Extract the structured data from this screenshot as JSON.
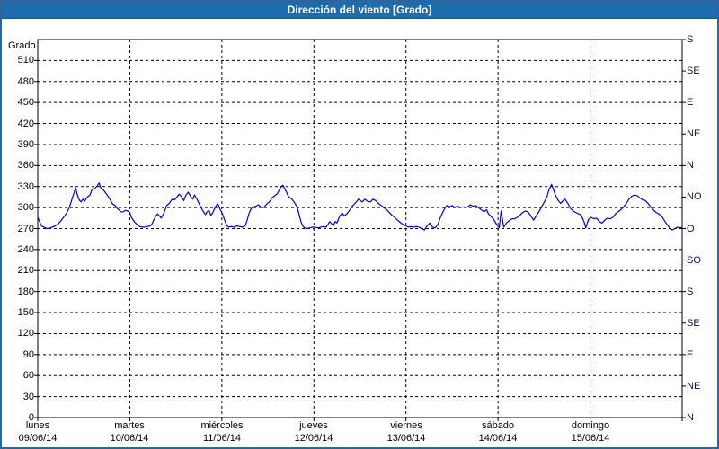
{
  "window": {
    "title": "Dirección del viento [Grado]"
  },
  "colors": {
    "titlebar_bg": "#1e6cab",
    "titlebar_border": "#15568e",
    "frame_border": "#30649c",
    "title_text": "#ffffff",
    "plot_bg": "#ffffff",
    "grid": "#000000",
    "axis": "#000000",
    "line": "#0000cc",
    "text": "#000000"
  },
  "chart_data": {
    "type": "line",
    "title": "Dirección del viento [Grado]",
    "y_axis_label": "Grado",
    "ylim": [
      0,
      540
    ],
    "ylabel_unit": "Grado",
    "grid": "dashed",
    "legend_position": "none",
    "y_ticks_left": [
      0,
      30,
      60,
      90,
      120,
      150,
      180,
      210,
      240,
      270,
      300,
      330,
      360,
      390,
      420,
      450,
      480,
      510
    ],
    "y_ticks_right": [
      {
        "value": 0,
        "label": "N"
      },
      {
        "value": 45,
        "label": "NE"
      },
      {
        "value": 90,
        "label": "E"
      },
      {
        "value": 135,
        "label": "SE"
      },
      {
        "value": 180,
        "label": "S"
      },
      {
        "value": 225,
        "label": "SO"
      },
      {
        "value": 270,
        "label": "O"
      },
      {
        "value": 315,
        "label": "NO"
      },
      {
        "value": 360,
        "label": "N"
      },
      {
        "value": 405,
        "label": "NE"
      },
      {
        "value": 450,
        "label": "E"
      },
      {
        "value": 495,
        "label": "SE"
      },
      {
        "value": 540,
        "label": "S"
      }
    ],
    "xlim_days": [
      0,
      7
    ],
    "x_days": [
      {
        "name": "lunes",
        "date": "09/06/14"
      },
      {
        "name": "martes",
        "date": "10/06/14"
      },
      {
        "name": "miércoles",
        "date": "11/06/14"
      },
      {
        "name": "jueves",
        "date": "12/06/14"
      },
      {
        "name": "viernes",
        "date": "13/06/14"
      },
      {
        "name": "sábado",
        "date": "14/06/14"
      },
      {
        "name": "domingo",
        "date": "15/06/14"
      }
    ],
    "series": [
      {
        "name": "Dirección del viento",
        "color": "#0000cc",
        "points": [
          [
            0.0,
            286
          ],
          [
            0.02,
            280
          ],
          [
            0.039,
            274
          ],
          [
            0.069,
            272
          ],
          [
            0.098,
            270
          ],
          [
            0.137,
            271
          ],
          [
            0.176,
            273
          ],
          [
            0.215,
            276
          ],
          [
            0.245,
            280
          ],
          [
            0.274,
            285
          ],
          [
            0.313,
            292
          ],
          [
            0.343,
            300
          ],
          [
            0.362,
            308
          ],
          [
            0.382,
            316
          ],
          [
            0.401,
            324
          ],
          [
            0.411,
            328
          ],
          [
            0.431,
            318
          ],
          [
            0.45,
            311
          ],
          [
            0.47,
            308
          ],
          [
            0.49,
            312
          ],
          [
            0.509,
            309
          ],
          [
            0.538,
            315
          ],
          [
            0.568,
            318
          ],
          [
            0.587,
            325
          ],
          [
            0.617,
            327
          ],
          [
            0.646,
            331
          ],
          [
            0.666,
            335
          ],
          [
            0.685,
            328
          ],
          [
            0.715,
            325
          ],
          [
            0.754,
            318
          ],
          [
            0.783,
            312
          ],
          [
            0.813,
            305
          ],
          [
            0.842,
            303
          ],
          [
            0.862,
            299
          ],
          [
            0.881,
            297
          ],
          [
            0.901,
            294
          ],
          [
            0.93,
            294
          ],
          [
            0.95,
            296
          ],
          [
            0.979,
            295
          ],
          [
            0.999,
            293
          ],
          [
            1.018,
            286
          ],
          [
            1.048,
            280
          ],
          [
            1.077,
            276
          ],
          [
            1.106,
            273
          ],
          [
            1.136,
            272
          ],
          [
            1.165,
            272
          ],
          [
            1.194,
            273
          ],
          [
            1.224,
            274
          ],
          [
            1.243,
            277
          ],
          [
            1.263,
            283
          ],
          [
            1.283,
            288
          ],
          [
            1.302,
            291
          ],
          [
            1.322,
            288
          ],
          [
            1.341,
            285
          ],
          [
            1.371,
            292
          ],
          [
            1.4,
            303
          ],
          [
            1.429,
            306
          ],
          [
            1.459,
            312
          ],
          [
            1.488,
            311
          ],
          [
            1.517,
            316
          ],
          [
            1.537,
            319
          ],
          [
            1.566,
            315
          ],
          [
            1.586,
            310
          ],
          [
            1.606,
            317
          ],
          [
            1.635,
            322
          ],
          [
            1.664,
            315
          ],
          [
            1.684,
            312
          ],
          [
            1.703,
            318
          ],
          [
            1.733,
            311
          ],
          [
            1.762,
            303
          ],
          [
            1.791,
            296
          ],
          [
            1.821,
            290
          ],
          [
            1.84,
            294
          ],
          [
            1.86,
            296
          ],
          [
            1.88,
            289
          ],
          [
            1.899,
            292
          ],
          [
            1.919,
            298
          ],
          [
            1.938,
            303
          ],
          [
            1.958,
            305
          ],
          [
            1.978,
            298
          ],
          [
            1.997,
            294
          ],
          [
            2.017,
            287
          ],
          [
            2.036,
            280
          ],
          [
            2.056,
            274
          ],
          [
            2.076,
            272
          ],
          [
            2.105,
            273
          ],
          [
            2.134,
            272
          ],
          [
            2.164,
            274
          ],
          [
            2.193,
            273
          ],
          [
            2.222,
            272
          ],
          [
            2.252,
            274
          ],
          [
            2.271,
            280
          ],
          [
            2.291,
            290
          ],
          [
            2.311,
            297
          ],
          [
            2.33,
            300
          ],
          [
            2.35,
            301
          ],
          [
            2.369,
            302
          ],
          [
            2.399,
            304
          ],
          [
            2.418,
            301
          ],
          [
            2.448,
            300
          ],
          [
            2.467,
            302
          ],
          [
            2.487,
            305
          ],
          [
            2.516,
            308
          ],
          [
            2.546,
            314
          ],
          [
            2.575,
            317
          ],
          [
            2.604,
            320
          ],
          [
            2.624,
            325
          ],
          [
            2.643,
            330
          ],
          [
            2.663,
            332
          ],
          [
            2.683,
            327
          ],
          [
            2.702,
            322
          ],
          [
            2.722,
            316
          ],
          [
            2.741,
            314
          ],
          [
            2.761,
            312
          ],
          [
            2.79,
            307
          ],
          [
            2.82,
            300
          ],
          [
            2.839,
            290
          ],
          [
            2.859,
            280
          ],
          [
            2.878,
            274
          ],
          [
            2.898,
            271
          ],
          [
            2.927,
            270
          ],
          [
            2.957,
            271
          ],
          [
            2.986,
            272
          ],
          [
            3.015,
            272
          ],
          [
            3.045,
            271
          ],
          [
            3.074,
            272
          ],
          [
            3.103,
            273
          ],
          [
            3.133,
            272
          ],
          [
            3.152,
            276
          ],
          [
            3.172,
            280
          ],
          [
            3.191,
            277
          ],
          [
            3.211,
            274
          ],
          [
            3.231,
            280
          ],
          [
            3.25,
            278
          ],
          [
            3.28,
            288
          ],
          [
            3.309,
            292
          ],
          [
            3.328,
            288
          ],
          [
            3.358,
            291
          ],
          [
            3.387,
            296
          ],
          [
            3.417,
            302
          ],
          [
            3.446,
            306
          ],
          [
            3.466,
            309
          ],
          [
            3.485,
            312
          ],
          [
            3.505,
            310
          ],
          [
            3.524,
            308
          ],
          [
            3.554,
            312
          ],
          [
            3.583,
            309
          ],
          [
            3.612,
            308
          ],
          [
            3.642,
            312
          ],
          [
            3.671,
            310
          ],
          [
            3.7,
            306
          ],
          [
            3.73,
            303
          ],
          [
            3.759,
            300
          ],
          [
            3.789,
            297
          ],
          [
            3.818,
            293
          ],
          [
            3.848,
            289
          ],
          [
            3.877,
            286
          ],
          [
            3.916,
            281
          ],
          [
            3.955,
            277
          ],
          [
            3.995,
            274
          ],
          [
            4.024,
            272
          ],
          [
            4.053,
            273
          ],
          [
            4.083,
            272
          ],
          [
            4.112,
            273
          ],
          [
            4.141,
            272
          ],
          [
            4.171,
            270
          ],
          [
            4.2,
            268
          ],
          [
            4.23,
            274
          ],
          [
            4.259,
            278
          ],
          [
            4.288,
            272
          ],
          [
            4.318,
            271
          ],
          [
            4.347,
            276
          ],
          [
            4.377,
            287
          ],
          [
            4.406,
            295
          ],
          [
            4.426,
            300
          ],
          [
            4.445,
            303
          ],
          [
            4.475,
            301
          ],
          [
            4.504,
            303
          ],
          [
            4.533,
            300
          ],
          [
            4.563,
            302
          ],
          [
            4.592,
            300
          ],
          [
            4.621,
            301
          ],
          [
            4.651,
            300
          ],
          [
            4.68,
            302
          ],
          [
            4.7,
            304
          ],
          [
            4.729,
            302
          ],
          [
            4.759,
            303
          ],
          [
            4.788,
            300
          ],
          [
            4.817,
            297
          ],
          [
            4.847,
            294
          ],
          [
            4.876,
            297
          ],
          [
            4.896,
            291
          ],
          [
            4.925,
            287
          ],
          [
            4.954,
            283
          ],
          [
            4.984,
            276
          ],
          [
            5.013,
            271
          ],
          [
            5.033,
            295
          ],
          [
            5.062,
            272
          ],
          [
            5.091,
            278
          ],
          [
            5.121,
            281
          ],
          [
            5.15,
            284
          ],
          [
            5.179,
            284
          ],
          [
            5.209,
            286
          ],
          [
            5.238,
            289
          ],
          [
            5.267,
            293
          ],
          [
            5.297,
            295
          ],
          [
            5.326,
            294
          ],
          [
            5.356,
            288
          ],
          [
            5.385,
            282
          ],
          [
            5.414,
            288
          ],
          [
            5.444,
            294
          ],
          [
            5.473,
            301
          ],
          [
            5.502,
            308
          ],
          [
            5.532,
            315
          ],
          [
            5.551,
            325
          ],
          [
            5.581,
            333
          ],
          [
            5.6,
            327
          ],
          [
            5.62,
            319
          ],
          [
            5.649,
            311
          ],
          [
            5.679,
            306
          ],
          [
            5.708,
            310
          ],
          [
            5.728,
            312
          ],
          [
            5.757,
            306
          ],
          [
            5.786,
            299
          ],
          [
            5.816,
            295
          ],
          [
            5.845,
            293
          ],
          [
            5.874,
            291
          ],
          [
            5.904,
            289
          ],
          [
            5.933,
            280
          ],
          [
            5.953,
            271
          ],
          [
            5.982,
            283
          ],
          [
            6.011,
            286
          ],
          [
            6.041,
            284
          ],
          [
            6.07,
            285
          ],
          [
            6.099,
            280
          ],
          [
            6.129,
            278
          ],
          [
            6.158,
            282
          ],
          [
            6.187,
            285
          ],
          [
            6.217,
            284
          ],
          [
            6.246,
            286
          ],
          [
            6.276,
            291
          ],
          [
            6.305,
            294
          ],
          [
            6.334,
            297
          ],
          [
            6.364,
            301
          ],
          [
            6.393,
            306
          ],
          [
            6.422,
            312
          ],
          [
            6.452,
            316
          ],
          [
            6.481,
            318
          ],
          [
            6.511,
            317
          ],
          [
            6.54,
            314
          ],
          [
            6.569,
            311
          ],
          [
            6.599,
            310
          ],
          [
            6.628,
            306
          ],
          [
            6.657,
            301
          ],
          [
            6.687,
            297
          ],
          [
            6.716,
            293
          ],
          [
            6.745,
            291
          ],
          [
            6.775,
            288
          ],
          [
            6.804,
            282
          ],
          [
            6.834,
            276
          ],
          [
            6.863,
            271
          ],
          [
            6.892,
            268
          ],
          [
            6.922,
            270
          ],
          [
            6.951,
            272
          ],
          [
            6.98,
            271
          ],
          [
            7.0,
            272
          ]
        ]
      }
    ]
  }
}
